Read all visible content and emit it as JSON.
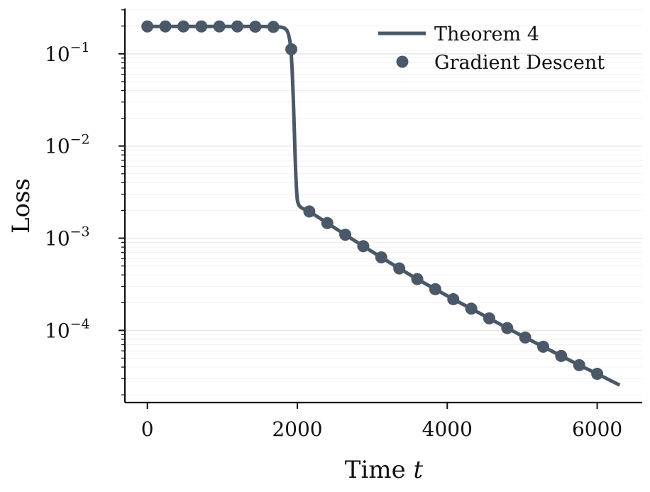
{
  "chart_data": {
    "type": "line",
    "xlabel": "Time",
    "xlabel_var": "t",
    "ylabel": "Loss",
    "yscale": "log",
    "xlim": [
      -300,
      6600
    ],
    "ylim": [
      1.65e-05,
      0.31
    ],
    "x_ticks": [
      0,
      2000,
      4000,
      6000
    ],
    "y_ticks": [
      0.1,
      0.01,
      0.001,
      0.0001
    ],
    "y_tick_labels": [
      {
        "base": "10",
        "exp": "−1"
      },
      {
        "base": "10",
        "exp": "−2"
      },
      {
        "base": "10",
        "exp": "−3"
      },
      {
        "base": "10",
        "exp": "−4"
      }
    ],
    "grid": "horizontal-light",
    "legend_position": "top-right",
    "series": [
      {
        "name": "Theorem 4",
        "kind": "line",
        "color": "#4a5868",
        "x": [
          0,
          500,
          1000,
          1500,
          1700,
          1780,
          1830,
          1860,
          1880,
          1900,
          1915,
          1930,
          1945,
          1960,
          1970,
          1980,
          1990,
          2000,
          2010,
          2025,
          2050,
          2100,
          2160,
          2400,
          2640,
          2880,
          3120,
          3360,
          3600,
          3840,
          4080,
          4320,
          4560,
          4800,
          5040,
          5280,
          5520,
          5760,
          6000,
          6300
        ],
        "y": [
          0.198,
          0.198,
          0.198,
          0.198,
          0.197,
          0.195,
          0.19,
          0.18,
          0.165,
          0.14,
          0.11,
          0.07,
          0.035,
          0.015,
          0.008,
          0.0048,
          0.0033,
          0.0026,
          0.0024,
          0.00225,
          0.00215,
          0.00205,
          0.00195,
          0.00146,
          0.00109,
          0.00082,
          0.00062,
          0.00047,
          0.00036,
          0.00028,
          0.000218,
          0.000172,
          0.000135,
          0.000106,
          8.37e-05,
          6.65e-05,
          5.28e-05,
          4.2e-05,
          3.38e-05,
          2.55e-05
        ]
      },
      {
        "name": "Gradient Descent",
        "kind": "scatter",
        "color": "#4a5868",
        "x": [
          0,
          240,
          480,
          720,
          960,
          1200,
          1440,
          1680,
          1920,
          2160,
          2400,
          2640,
          2880,
          3120,
          3360,
          3600,
          3840,
          4080,
          4320,
          4560,
          4800,
          5040,
          5280,
          5520,
          5760,
          6000
        ],
        "y": [
          0.198,
          0.198,
          0.198,
          0.198,
          0.198,
          0.198,
          0.197,
          0.196,
          0.112,
          0.00195,
          0.00146,
          0.00109,
          0.00082,
          0.00062,
          0.00047,
          0.00036,
          0.00028,
          0.000218,
          0.000172,
          0.000135,
          0.000106,
          8.37e-05,
          6.65e-05,
          5.28e-05,
          4.2e-05,
          3.38e-05
        ]
      }
    ]
  }
}
